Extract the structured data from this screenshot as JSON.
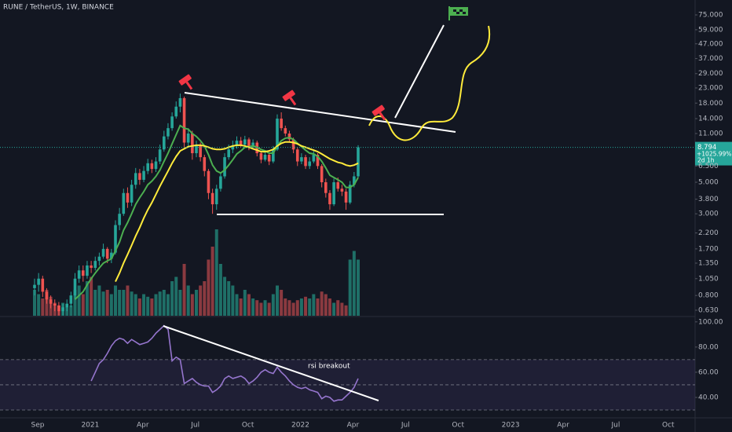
{
  "chart_data": [
    {
      "type": "candlestick",
      "title": "RUNE / TetherUS, 1W, BINANCE",
      "log_scale": true,
      "grid": false,
      "up_color": "#26a69a",
      "down_color": "#ef5350",
      "volume_up_color": "#1f6f67",
      "volume_down_color": "#8b3a40",
      "x_labels": [
        "Sep",
        "2021",
        "Apr",
        "Jul",
        "Oct",
        "2022",
        "Apr",
        "Jul",
        "Oct",
        "2023",
        "Apr",
        "Jul",
        "Oct"
      ],
      "open": [
        0.9,
        0.95,
        1.05,
        0.85,
        0.75,
        0.7,
        0.68,
        0.62,
        0.66,
        0.7,
        0.8,
        1.05,
        1.2,
        1.1,
        1.3,
        1.25,
        1.4,
        1.5,
        1.7,
        1.45,
        1.6,
        2.5,
        3.0,
        4.2,
        3.6,
        4.8,
        5.8,
        5.2,
        6.0,
        6.8,
        6.2,
        7.0,
        8.5,
        10.5,
        12,
        14.5,
        17,
        19.5,
        9.5,
        11,
        8,
        9,
        7.5,
        6,
        4.2,
        3.5,
        4.5,
        5.5,
        7.5,
        8.5,
        9,
        9.8,
        9.2,
        10,
        8.8,
        9.5,
        8,
        7.2,
        7.8,
        7,
        8.5,
        14,
        12,
        11,
        10,
        8.5,
        7,
        7.5,
        6.5,
        7,
        7.8,
        6.5,
        5,
        4.2,
        3.5,
        5,
        4.5,
        4.3,
        3.6,
        4.8,
        5.5
      ],
      "high": [
        1.05,
        1.15,
        1.1,
        0.9,
        0.8,
        0.75,
        0.72,
        0.7,
        0.75,
        0.85,
        1.15,
        1.3,
        1.3,
        1.4,
        1.4,
        1.5,
        1.6,
        1.85,
        1.75,
        1.7,
        2.7,
        3.3,
        4.5,
        4.6,
        5.2,
        6.3,
        6.2,
        6.5,
        7.3,
        7.2,
        7.5,
        9.2,
        11.5,
        13,
        15.5,
        18.5,
        21,
        20,
        12,
        11.5,
        9.8,
        9.5,
        7.8,
        6.2,
        4.5,
        4.8,
        5.9,
        8,
        9.2,
        9.8,
        10.5,
        10.4,
        10.6,
        10.3,
        10,
        9.8,
        8.3,
        8.2,
        8,
        9,
        15,
        15.5,
        12.5,
        11.5,
        10.3,
        8.8,
        8,
        7.8,
        7.5,
        8.3,
        8,
        6.7,
        5.3,
        4.4,
        5.3,
        5.4,
        4.8,
        4.5,
        5.1,
        5.9,
        9.1
      ],
      "low": [
        0.8,
        0.85,
        0.78,
        0.7,
        0.65,
        0.62,
        0.58,
        0.58,
        0.62,
        0.66,
        0.75,
        0.98,
        1.0,
        1.05,
        1.15,
        1.2,
        1.3,
        1.45,
        1.35,
        1.35,
        1.55,
        2.3,
        2.9,
        3.3,
        3.4,
        4.5,
        4.8,
        5.0,
        5.7,
        5.8,
        5.9,
        6.7,
        8.2,
        10,
        11.5,
        14,
        15.5,
        8.5,
        8.8,
        7.2,
        7.5,
        7,
        5.5,
        3.8,
        3.0,
        3.2,
        4.3,
        5.3,
        7.2,
        8,
        8.6,
        8.8,
        8.9,
        8.4,
        8.5,
        7.6,
        6.8,
        7,
        6.6,
        6.8,
        8.3,
        11.5,
        10.5,
        9.5,
        8,
        6.5,
        6.7,
        6.2,
        6.2,
        6.8,
        6.2,
        4.6,
        3.9,
        3.2,
        3.4,
        4.3,
        4.0,
        3.2,
        3.5,
        4.6,
        5.4
      ],
      "close": [
        0.95,
        1.05,
        0.85,
        0.75,
        0.7,
        0.68,
        0.62,
        0.66,
        0.7,
        0.8,
        1.05,
        1.2,
        1.1,
        1.3,
        1.25,
        1.4,
        1.5,
        1.7,
        1.45,
        1.6,
        2.5,
        3.0,
        4.2,
        3.6,
        4.8,
        5.8,
        5.2,
        6.0,
        6.8,
        6.2,
        7.0,
        8.5,
        10.5,
        12,
        14.5,
        17,
        19.5,
        9.5,
        11,
        8,
        9,
        7.5,
        6,
        4.2,
        3.5,
        4.5,
        5.5,
        7.5,
        8.5,
        9,
        9.8,
        9.2,
        10,
        8.8,
        9.5,
        8,
        7.2,
        7.8,
        7,
        8.5,
        14,
        12,
        11,
        10,
        8.5,
        7,
        7.5,
        6.5,
        7,
        7.8,
        6.5,
        5,
        4.2,
        3.5,
        5,
        4.5,
        4.3,
        3.6,
        4.8,
        5.5,
        8.8
      ],
      "volume": [
        30,
        25,
        20,
        30,
        22,
        15,
        12,
        15,
        10,
        12,
        30,
        35,
        25,
        40,
        45,
        30,
        35,
        28,
        30,
        25,
        35,
        30,
        30,
        35,
        28,
        25,
        20,
        25,
        22,
        20,
        25,
        28,
        30,
        25,
        40,
        45,
        30,
        60,
        35,
        25,
        30,
        35,
        40,
        65,
        80,
        100,
        60,
        45,
        40,
        35,
        25,
        20,
        30,
        25,
        20,
        18,
        15,
        18,
        15,
        25,
        35,
        30,
        20,
        18,
        15,
        18,
        20,
        22,
        20,
        25,
        20,
        28,
        25,
        20,
        15,
        18,
        15,
        12,
        65,
        75,
        65
      ],
      "volume_lim": [
        0,
        100
      ],
      "moving_averages": [
        {
          "color": "#4caf50",
          "values": [
            null,
            null,
            null,
            null,
            null,
            null,
            null,
            null,
            null,
            null,
            0.75,
            0.8,
            0.85,
            0.95,
            1.05,
            1.15,
            1.25,
            1.35,
            1.4,
            1.45,
            1.65,
            1.9,
            2.3,
            2.6,
            3.0,
            3.5,
            3.9,
            4.3,
            4.8,
            5.1,
            5.5,
            6.1,
            7.0,
            8.0,
            9.3,
            10.8,
            12.5,
            12,
            11.8,
            11,
            10.5,
            9.8,
            9.0,
            7.8,
            6.6,
            6.0,
            5.8,
            6.1,
            6.6,
            7.2,
            7.9,
            8.3,
            8.8,
            8.9,
            9.0,
            8.8,
            8.5,
            8.3,
            8.0,
            8.0,
            9.0,
            9.8,
            10.2,
            10.3,
            10.0,
            9.4,
            8.9,
            8.4,
            8.0,
            7.9,
            7.6,
            7.0,
            6.3,
            5.6,
            5.4,
            5.2,
            5.0,
            4.6,
            4.6,
            4.8,
            5.4
          ]
        },
        {
          "color": "#ffeb3b",
          "values": [
            null,
            null,
            null,
            null,
            null,
            null,
            null,
            null,
            null,
            null,
            null,
            null,
            null,
            null,
            null,
            null,
            null,
            null,
            null,
            null,
            1.0,
            1.15,
            1.35,
            1.55,
            1.8,
            2.1,
            2.4,
            2.8,
            3.2,
            3.6,
            4.1,
            4.7,
            5.3,
            6.0,
            6.8,
            7.6,
            8.3,
            8.6,
            8.9,
            9.0,
            9.1,
            9.1,
            9.0,
            8.8,
            8.6,
            8.5,
            8.5,
            8.6,
            8.8,
            9.0,
            9.1,
            9.1,
            9.0,
            8.8,
            8.6,
            8.4,
            8.2,
            8.2,
            8.3,
            8.5,
            9.0,
            9.4,
            9.6,
            9.6,
            9.5,
            9.3,
            9.0,
            8.8,
            8.6,
            8.4,
            8.2,
            7.9,
            7.6,
            7.3,
            7.1,
            6.9,
            6.8,
            6.6,
            6.5,
            6.6,
            6.8
          ]
        }
      ],
      "ylim": [
        0.576,
        95.5
      ],
      "yticks": [
        {
          "value": 0.63,
          "label": "0.630"
        },
        {
          "value": 0.8,
          "label": "0.800"
        },
        {
          "value": 1.05,
          "label": "1.050"
        },
        {
          "value": 1.35,
          "label": "1.350"
        },
        {
          "value": 1.7,
          "label": "1.700"
        },
        {
          "value": 2.2,
          "label": "2.200"
        },
        {
          "value": 3,
          "label": "3.000"
        },
        {
          "value": 3.8,
          "label": "3.800"
        },
        {
          "value": 5,
          "label": "5.000"
        },
        {
          "value": 6.5,
          "label": "6.500"
        },
        {
          "value": 11,
          "label": "11.000"
        },
        {
          "value": 14,
          "label": "14.000"
        },
        {
          "value": 18,
          "label": "18.000"
        },
        {
          "value": 23,
          "label": "23.000"
        },
        {
          "value": 29,
          "label": "29.000"
        },
        {
          "value": 37,
          "label": "37.000"
        },
        {
          "value": 47,
          "label": "47.000"
        },
        {
          "value": 59,
          "label": "59.000"
        },
        {
          "value": 75,
          "label": "75.000"
        }
      ],
      "price": 8.794,
      "change_label": "+1025.99%",
      "countdown": "2d 1h"
    },
    {
      "type": "line",
      "series": [
        {
          "color": "#9575cd",
          "values": [
            null,
            null,
            null,
            null,
            null,
            null,
            null,
            null,
            null,
            null,
            null,
            null,
            null,
            null,
            53,
            60,
            67,
            70,
            75,
            81,
            85,
            87,
            86,
            83,
            86,
            84,
            82,
            83,
            84,
            87,
            91,
            94,
            97,
            94,
            69,
            72,
            70,
            51,
            53,
            55,
            52,
            50,
            49,
            49,
            44,
            46,
            49,
            55,
            57,
            55,
            56,
            57,
            55,
            51,
            53,
            56,
            60,
            62,
            60,
            59,
            64,
            60,
            57,
            53,
            50,
            48,
            47,
            48,
            46,
            45,
            44,
            39,
            41,
            40,
            37,
            38,
            38,
            41,
            44,
            48,
            55
          ]
        }
      ],
      "levels": [
        30,
        50,
        70
      ],
      "band_color": "#7e57c2",
      "ylim": [
        25,
        103
      ],
      "yticks": [
        {
          "value": 40,
          "label": "40.00"
        },
        {
          "value": 60,
          "label": "60.00"
        },
        {
          "value": 80,
          "label": "80.00"
        },
        {
          "value": 100,
          "label": "100.00"
        }
      ],
      "annotation": "rsi breakout"
    }
  ]
}
